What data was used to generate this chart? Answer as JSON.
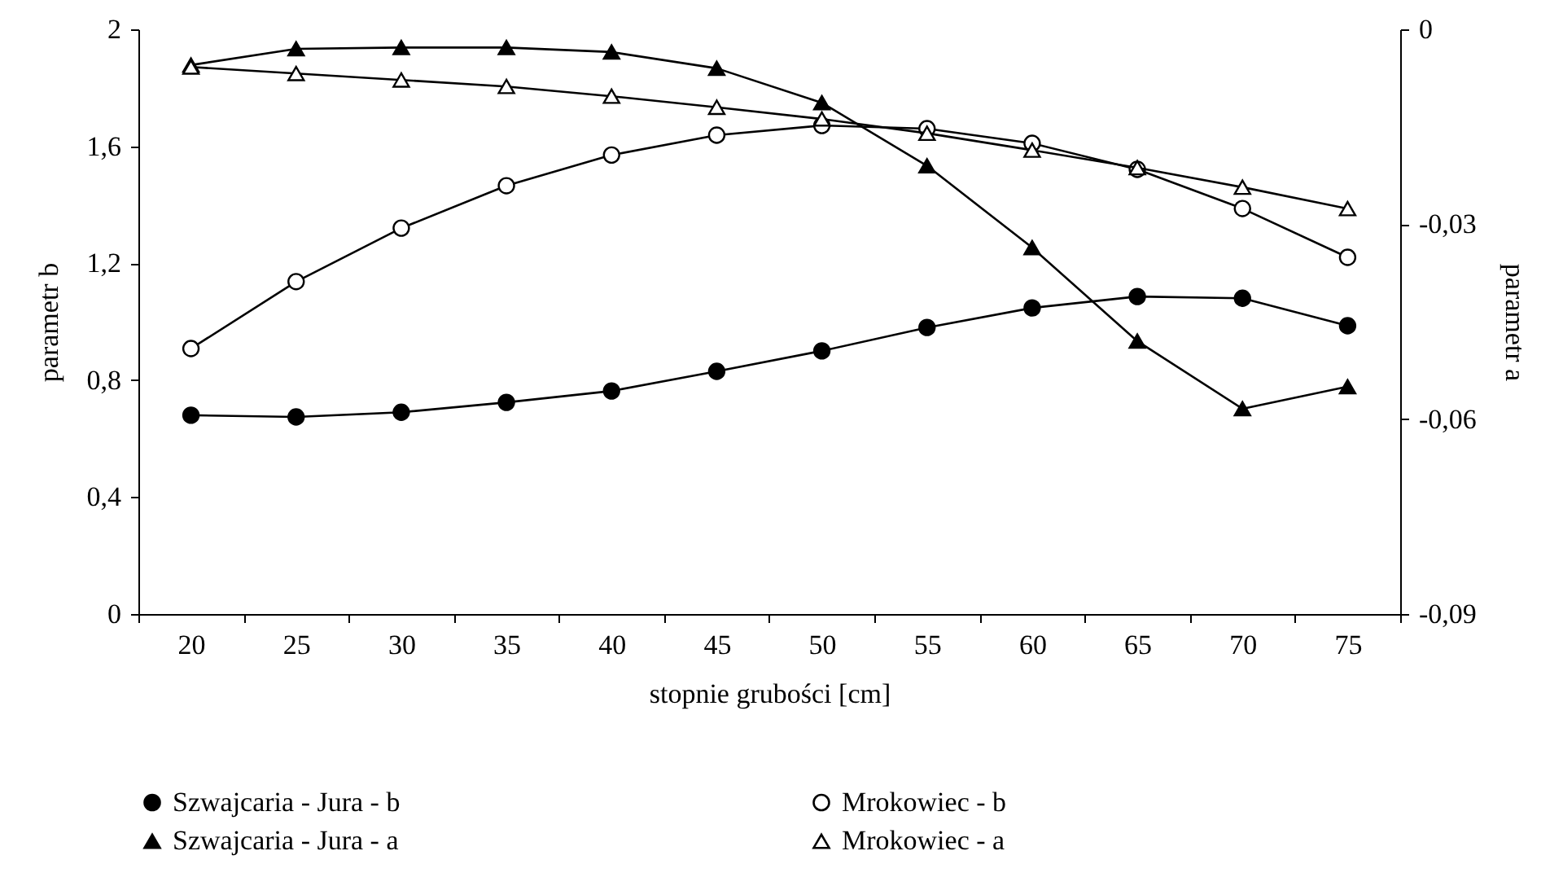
{
  "chart_data": {
    "type": "line",
    "xlabel": "stopnie grubości [cm]",
    "ylabel": "parametr b",
    "y2label": "parametr a",
    "categories": [
      "20",
      "25",
      "30",
      "35",
      "40",
      "45",
      "50",
      "55",
      "60",
      "65",
      "70",
      "75"
    ],
    "ylim": [
      0,
      2
    ],
    "yticks": [
      0,
      {
        "value": 0.4,
        "label": "0,4"
      },
      {
        "value": 0.8,
        "label": "0,8"
      },
      {
        "value": 1.2,
        "label": "1,2"
      },
      {
        "value": 1.6,
        "label": "1,6"
      },
      2
    ],
    "y2lim": [
      -0.09,
      0
    ],
    "y2ticks": [
      {
        "value": -0.09,
        "label": "-0,09"
      },
      {
        "value": -0.06,
        "label": "-0,06"
      },
      {
        "value": -0.03,
        "label": "-0,03"
      },
      0
    ],
    "grid": false,
    "legend": "bottom",
    "series": [
      {
        "name": "Szwajcaria - Jura - b",
        "color": "#000000",
        "marker": "circle",
        "values": [
          0.68,
          0.674,
          0.69,
          0.724,
          0.763,
          0.83,
          0.9,
          0.98,
          1.047,
          1.086,
          1.08,
          0.986
        ]
      },
      {
        "name": "Mrokowiec - b",
        "color": "#ffffff",
        "marker": "circle",
        "values": [
          0.908,
          1.137,
          1.32,
          1.465,
          1.57,
          1.638,
          1.671,
          1.66,
          1.61,
          1.521,
          1.387,
          1.22
        ]
      },
      {
        "name": "Szwajcaria - Jura - a",
        "color": "#000000",
        "marker": "triangle",
        "axis": "y2",
        "values": [
          -0.0055,
          -0.003,
          -0.0028,
          -0.0028,
          -0.0035,
          -0.006,
          -0.0113,
          -0.021,
          -0.0336,
          -0.048,
          -0.0584,
          -0.055
        ]
      },
      {
        "name": "Mrokowiec - a",
        "color": "#ffffff",
        "marker": "triangle",
        "axis": "y2",
        "values": [
          -0.0058,
          -0.0068,
          -0.0078,
          -0.0088,
          -0.0103,
          -0.012,
          -0.0138,
          -0.016,
          -0.0186,
          -0.0213,
          -0.0243,
          -0.0276
        ]
      }
    ]
  }
}
